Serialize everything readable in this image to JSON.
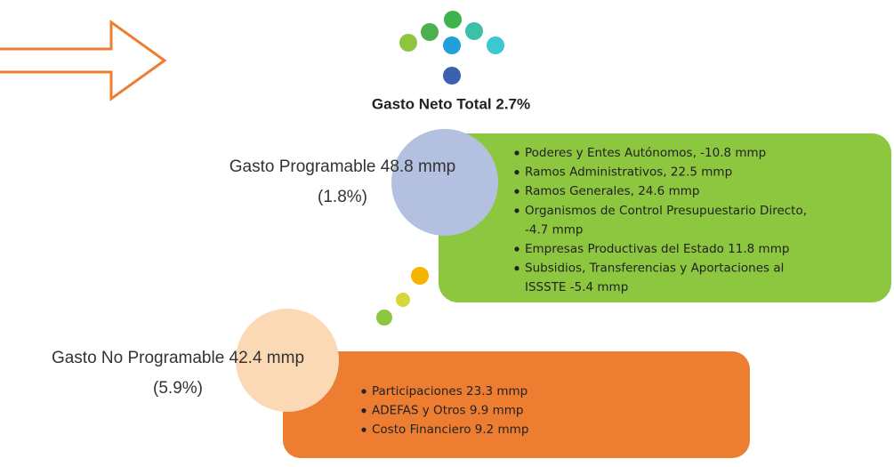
{
  "title": "Gasto Neto Total 2.7%",
  "groups": [
    {
      "label": "Gasto Programable 48.8 mmp",
      "sublabel": "(1.8%)",
      "items": [
        [
          "Poderes y Entes Autónomos, -10.8 mmp"
        ],
        [
          "Ramos Administrativos, 22.5 mmp"
        ],
        [
          "Ramos Generales, 24.6 mmp"
        ],
        [
          "Organismos de Control Presupuestario Directo,",
          "-4.7  mmp"
        ],
        [
          "Empresas Productivas del Estado 11.8 mmp"
        ],
        [
          "Subsidios, Transferencias y Aportaciones al",
          "ISSSTE  -5.4 mmp"
        ]
      ]
    },
    {
      "label": "Gasto No Programable 42.4 mmp",
      "sublabel": "(5.9%)",
      "items": [
        [
          "Participaciones 23.3 mmp"
        ],
        [
          "ADEFAS y Otros 9.9 mmp"
        ],
        [
          "Costo Financiero 9.2 mmp"
        ]
      ]
    }
  ]
}
